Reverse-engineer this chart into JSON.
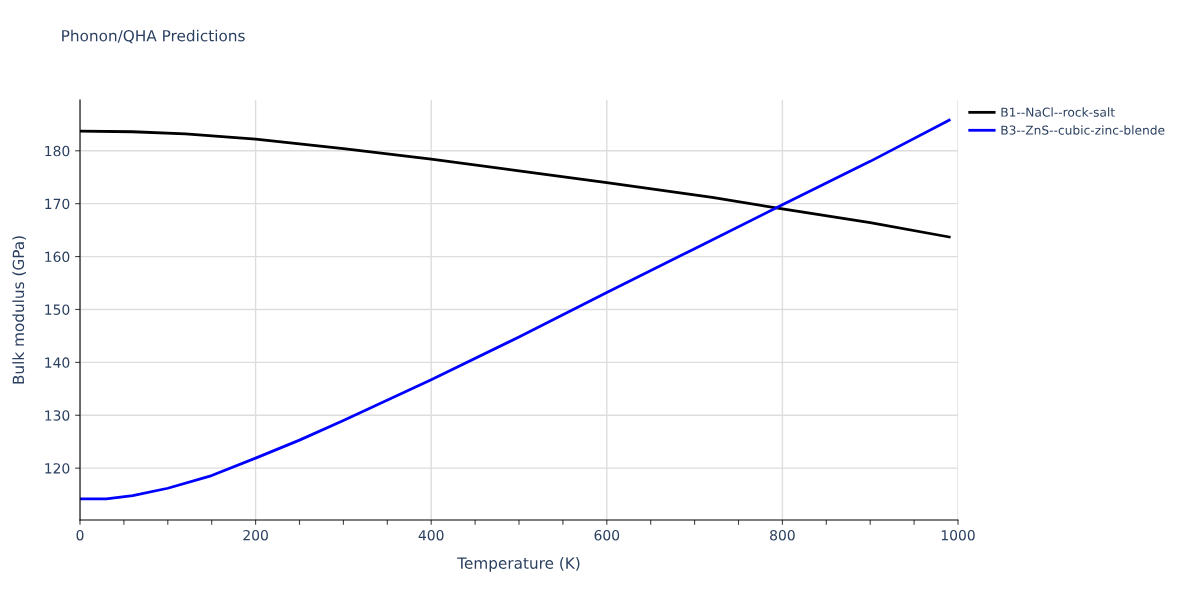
{
  "chart_data": {
    "type": "line",
    "title": "Phonon/QHA Predictions",
    "xlabel": "Temperature (K)",
    "ylabel": "Bulk modulus (GPa)",
    "series": [
      {
        "name": "B1--NaCl--rock-salt",
        "color": "#000000",
        "x": [
          0,
          60,
          120,
          200,
          300,
          400,
          500,
          600,
          720,
          800,
          900,
          990
        ],
        "values": [
          183.7,
          183.6,
          183.2,
          182.2,
          180.4,
          178.4,
          176.2,
          174.0,
          171.2,
          169.0,
          166.4,
          163.7
        ]
      },
      {
        "name": "B3--ZnS--cubic-zinc-blende",
        "color": "#0000ff",
        "x": [
          0,
          30,
          60,
          100,
          150,
          200,
          250,
          300,
          400,
          500,
          600,
          700,
          800,
          900,
          990
        ],
        "values": [
          114.2,
          114.2,
          114.8,
          116.2,
          118.6,
          121.9,
          125.3,
          129.0,
          136.7,
          144.8,
          153.2,
          161.5,
          169.8,
          178.0,
          185.8
        ]
      }
    ],
    "xlim": [
      0,
      1000
    ],
    "ylim": [
      110.2,
      189.6
    ],
    "xticks": [
      0,
      {
        "value": 50,
        "label": null
      },
      {
        "value": 100,
        "label": null
      },
      {
        "value": 150,
        "label": null
      },
      200,
      {
        "value": 250,
        "label": null
      },
      {
        "value": 300,
        "label": null
      },
      {
        "value": 350,
        "label": null
      },
      400,
      {
        "value": 450,
        "label": null
      },
      {
        "value": 500,
        "label": null
      },
      {
        "value": 550,
        "label": null
      },
      600,
      {
        "value": 650,
        "label": null
      },
      {
        "value": 700,
        "label": null
      },
      {
        "value": 750,
        "label": null
      },
      800,
      {
        "value": 850,
        "label": null
      },
      {
        "value": 900,
        "label": null
      },
      {
        "value": 950,
        "label": null
      },
      1000
    ],
    "yticks": [
      120,
      130,
      140,
      150,
      160,
      170,
      180
    ],
    "grid": true,
    "legend": "top right",
    "marker": "none",
    "line_style": "solid"
  }
}
